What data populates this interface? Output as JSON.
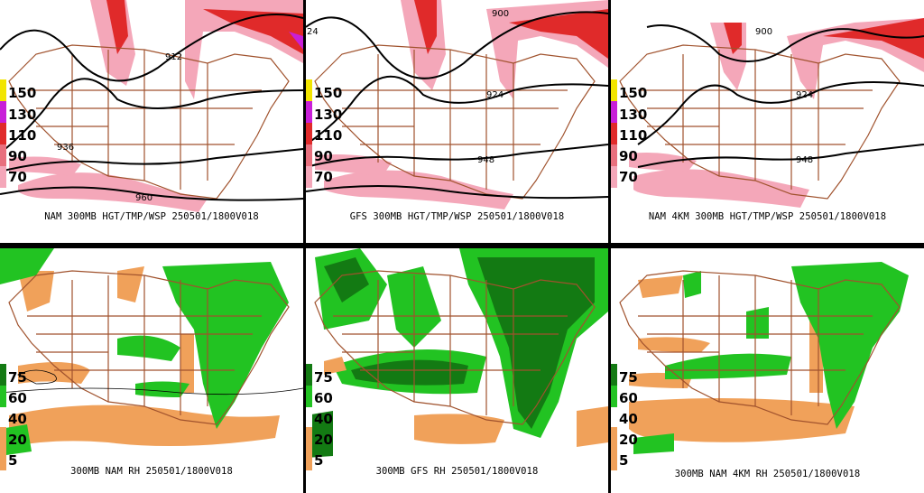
{
  "colors": {
    "wind_light": "#f4a7b9",
    "wind_mid": "#e8707e",
    "wind_strong": "#e02a2a",
    "wind_max": "#c81fd8",
    "rh_green_light": "#22c322",
    "rh_green_dark": "#137a13",
    "rh_orange": "#f0a15a",
    "coast_brown": "#a0522d",
    "contour": "#000000"
  },
  "top_panels": [
    {
      "caption": "NAM 300MB HGT/TMP/WSP 250501/1800V018",
      "legend": [
        "150",
        "130",
        "110",
        "90",
        "70"
      ],
      "contours": [
        "912",
        "936",
        "960"
      ]
    },
    {
      "caption": "GFS 300MB HGT/TMP/WSP 250501/1800V018",
      "legend": [
        "150",
        "130",
        "110",
        "90",
        "70"
      ],
      "contours": [
        "900",
        "924",
        "948",
        "24"
      ]
    },
    {
      "caption": "NAM 4KM 300MB HGT/TMP/WSP 250501/1800V018",
      "legend": [
        "150",
        "130",
        "110",
        "90",
        "70"
      ],
      "contours": [
        "900",
        "924",
        "948"
      ]
    }
  ],
  "bottom_panels": [
    {
      "caption": "300MB NAM RH 250501/1800V018",
      "legend": [
        "75",
        "60",
        "40",
        "20",
        "5"
      ]
    },
    {
      "caption": "300MB GFS RH 250501/1800V018",
      "legend": [
        "75",
        "60",
        "40",
        "20",
        "5"
      ]
    },
    {
      "caption": "300MB NAM 4KM RH 250501/1800V018",
      "legend": [
        "75",
        "60",
        "40",
        "20",
        "5"
      ]
    }
  ]
}
